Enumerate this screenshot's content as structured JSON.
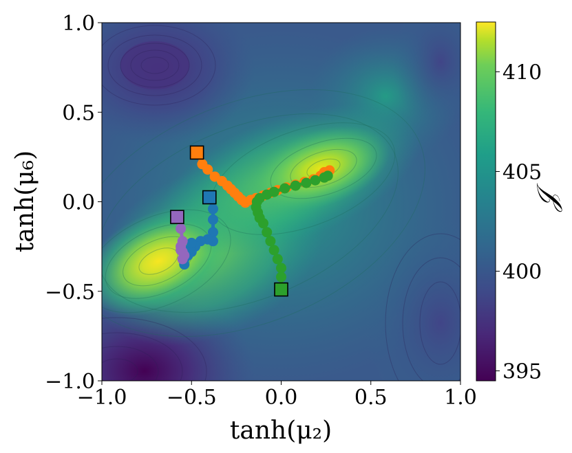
{
  "chart_data": {
    "type": "contour",
    "xlabel": "tanh(μ₂)",
    "ylabel": "tanh(μ₆)",
    "xlim": [
      -1.0,
      1.0
    ],
    "ylim": [
      -1.0,
      1.0
    ],
    "xticks": [
      -1.0,
      -0.5,
      0.0,
      0.5,
      1.0
    ],
    "yticks": [
      -1.0,
      -0.5,
      0.0,
      0.5,
      1.0
    ],
    "xtick_labels": [
      "−1.0",
      "−0.5",
      "0.0",
      "0.5",
      "1.0"
    ],
    "ytick_labels": [
      "−1.0",
      "−0.5",
      "0.0",
      "0.5",
      "1.0"
    ],
    "colorbar": {
      "label": "𝒥",
      "range": [
        394.5,
        412.5
      ],
      "ticks": [
        395,
        400,
        405,
        410
      ],
      "tick_labels": [
        "395",
        "400",
        "405",
        "410"
      ],
      "colormap": "viridis"
    },
    "surface_features": [
      {
        "kind": "maximum",
        "x": -0.6,
        "y": -0.32,
        "value": 412
      },
      {
        "kind": "maximum",
        "x": 0.28,
        "y": 0.18,
        "value": 411
      },
      {
        "kind": "minimum",
        "x": -0.92,
        "y": -0.92,
        "value": 394.5
      },
      {
        "kind": "local-minimum",
        "x": -0.7,
        "y": 0.76,
        "value": 397
      }
    ],
    "series": [
      {
        "color": "#ff7f0e",
        "start": [
          -0.47,
          0.275
        ],
        "points": [
          [
            -0.47,
            0.275
          ],
          [
            -0.44,
            0.21
          ],
          [
            -0.41,
            0.18
          ],
          [
            -0.37,
            0.14
          ],
          [
            -0.33,
            0.115
          ],
          [
            -0.3,
            0.09
          ],
          [
            -0.28,
            0.07
          ],
          [
            -0.26,
            0.05
          ],
          [
            -0.24,
            0.03
          ],
          [
            -0.22,
            0.01
          ],
          [
            -0.2,
            -0.005
          ],
          [
            -0.17,
            0.01
          ],
          [
            -0.14,
            0.02
          ],
          [
            -0.1,
            0.035
          ],
          [
            -0.06,
            0.05
          ],
          [
            -0.02,
            0.065
          ],
          [
            0.03,
            0.08
          ],
          [
            0.08,
            0.095
          ],
          [
            0.13,
            0.11
          ],
          [
            0.18,
            0.125
          ],
          [
            0.22,
            0.145
          ],
          [
            0.24,
            0.165
          ],
          [
            0.27,
            0.175
          ]
        ]
      },
      {
        "color": "#1f77b4",
        "start": [
          -0.4,
          0.025
        ],
        "points": [
          [
            -0.4,
            0.025
          ],
          [
            -0.38,
            -0.04
          ],
          [
            -0.38,
            -0.1
          ],
          [
            -0.38,
            -0.17
          ],
          [
            -0.38,
            -0.22
          ],
          [
            -0.41,
            -0.21
          ],
          [
            -0.45,
            -0.22
          ],
          [
            -0.48,
            -0.25
          ],
          [
            -0.5,
            -0.28
          ],
          [
            -0.52,
            -0.3
          ],
          [
            -0.54,
            -0.32
          ],
          [
            -0.54,
            -0.35
          ],
          [
            -0.52,
            -0.27
          ],
          [
            -0.5,
            -0.23
          ]
        ]
      },
      {
        "color": "#2ca02c",
        "start": [
          0.0,
          -0.49
        ],
        "points": [
          [
            0.0,
            -0.49
          ],
          [
            0.0,
            -0.42
          ],
          [
            0.0,
            -0.37
          ],
          [
            -0.02,
            -0.32
          ],
          [
            -0.04,
            -0.27
          ],
          [
            -0.06,
            -0.22
          ],
          [
            -0.08,
            -0.17
          ],
          [
            -0.1,
            -0.12
          ],
          [
            -0.12,
            -0.09
          ],
          [
            -0.13,
            -0.06
          ],
          [
            -0.14,
            -0.03
          ],
          [
            -0.135,
            0.0
          ],
          [
            -0.12,
            0.02
          ],
          [
            -0.08,
            0.04
          ],
          [
            -0.04,
            0.055
          ],
          [
            0.02,
            0.075
          ],
          [
            0.08,
            0.09
          ],
          [
            0.14,
            0.105
          ],
          [
            0.19,
            0.12
          ],
          [
            0.24,
            0.135
          ],
          [
            0.26,
            0.145
          ]
        ]
      },
      {
        "color": "#9467bd",
        "start": [
          -0.58,
          -0.085
        ],
        "points": [
          [
            -0.58,
            -0.085
          ],
          [
            -0.56,
            -0.15
          ],
          [
            -0.55,
            -0.22
          ],
          [
            -0.56,
            -0.25
          ],
          [
            -0.55,
            -0.28
          ],
          [
            -0.54,
            -0.3
          ],
          [
            -0.55,
            -0.32
          ],
          [
            -0.56,
            -0.27
          ]
        ]
      }
    ]
  }
}
